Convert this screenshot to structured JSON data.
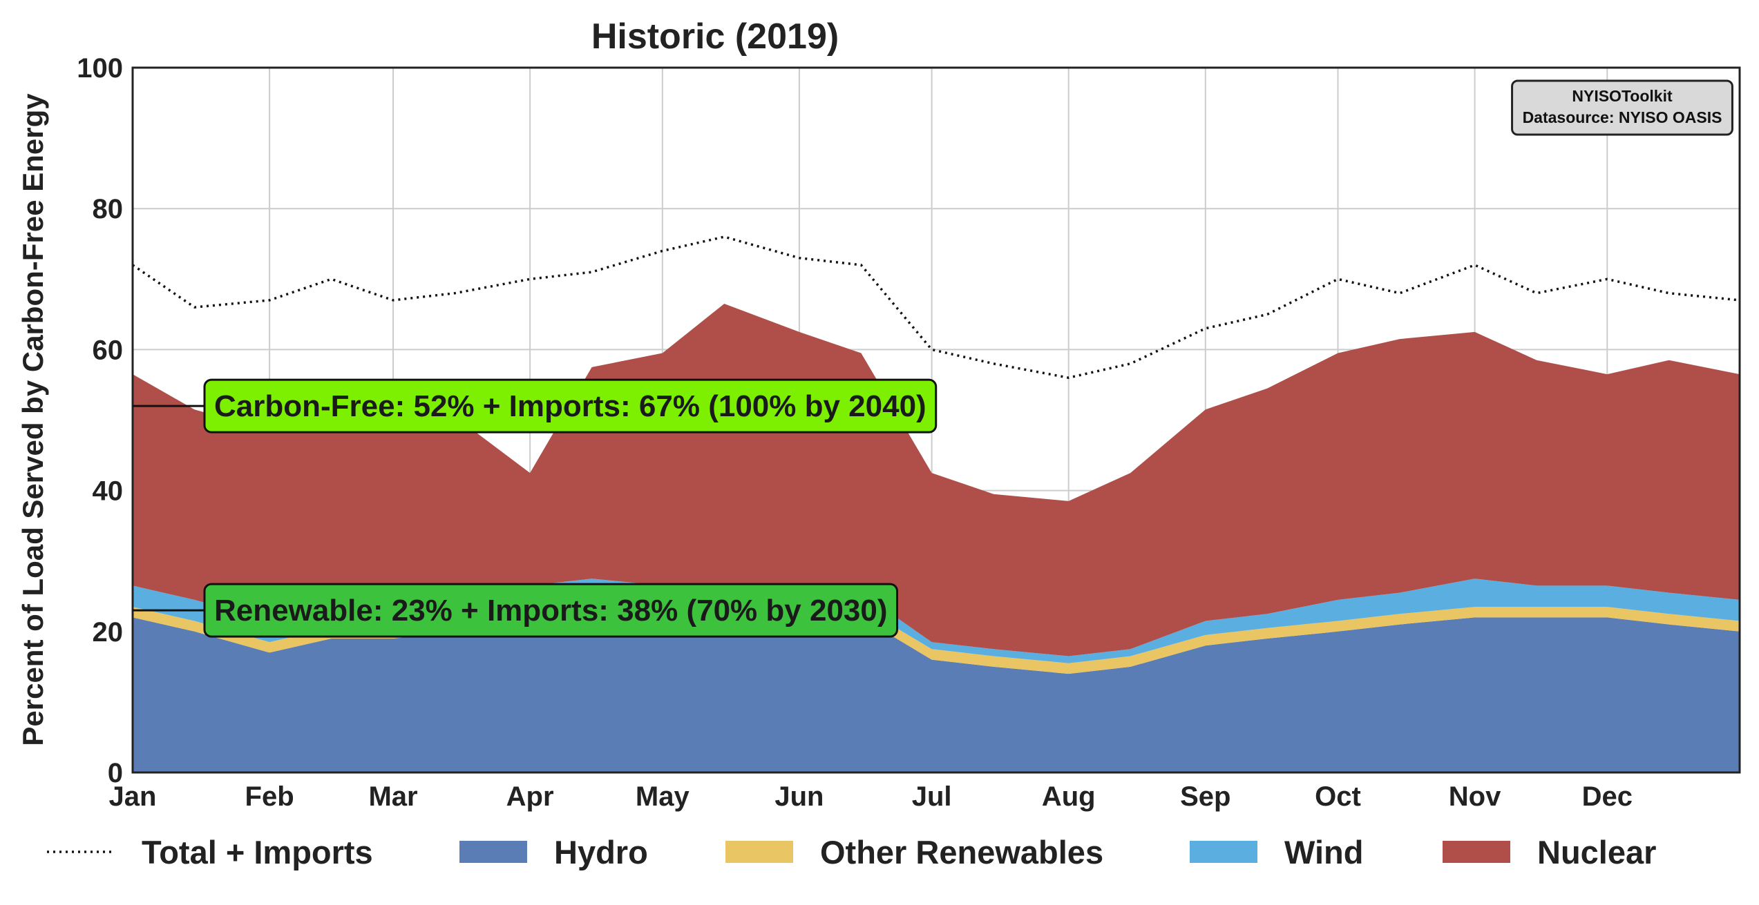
{
  "chart_data": {
    "type": "area",
    "title": "Historic (2019)",
    "xlabel": "",
    "ylabel": "Percent of Load Served by Carbon-Free Energy",
    "ylim": [
      0,
      100
    ],
    "yticks": [
      0,
      20,
      40,
      60,
      80,
      100
    ],
    "xlim": [
      "2019-01-01",
      "2019-12-31"
    ],
    "xticks": [
      {
        "date": "2019-01-01",
        "label": "Jan"
      },
      {
        "date": "2019-02-01",
        "label": "Feb"
      },
      {
        "date": "2019-03-01",
        "label": "Mar"
      },
      {
        "date": "2019-04-01",
        "label": "Apr"
      },
      {
        "date": "2019-05-01",
        "label": "May"
      },
      {
        "date": "2019-06-01",
        "label": "Jun"
      },
      {
        "date": "2019-07-01",
        "label": "Jul"
      },
      {
        "date": "2019-08-01",
        "label": "Aug"
      },
      {
        "date": "2019-09-01",
        "label": "Sep"
      },
      {
        "date": "2019-10-01",
        "label": "Oct"
      },
      {
        "date": "2019-11-01",
        "label": "Nov"
      },
      {
        "date": "2019-12-01",
        "label": "Dec"
      }
    ],
    "grid": true,
    "legend_position": "bottom",
    "x": [
      "2019-01-01",
      "2019-01-15",
      "2019-02-01",
      "2019-02-15",
      "2019-03-01",
      "2019-03-15",
      "2019-04-01",
      "2019-04-15",
      "2019-05-01",
      "2019-05-15",
      "2019-06-01",
      "2019-06-15",
      "2019-07-01",
      "2019-07-15",
      "2019-08-01",
      "2019-08-15",
      "2019-09-01",
      "2019-09-15",
      "2019-10-01",
      "2019-10-15",
      "2019-11-01",
      "2019-11-15",
      "2019-12-01",
      "2019-12-15",
      "2019-12-31"
    ],
    "series": [
      {
        "name": "Hydro",
        "color": "#5a7db5",
        "stacked": true,
        "values": [
          22,
          20,
          17,
          19,
          19,
          20,
          21,
          22,
          22,
          23,
          22,
          22,
          16,
          15,
          14,
          15,
          18,
          19,
          20,
          21,
          22,
          22,
          22,
          21,
          20
        ]
      },
      {
        "name": "Other Renewables",
        "color": "#eac563",
        "stacked": true,
        "values": [
          1.5,
          1.5,
          1.5,
          1.5,
          1.5,
          1.5,
          1.5,
          1.5,
          1.5,
          1.5,
          1.5,
          1.5,
          1.5,
          1.5,
          1.5,
          1.5,
          1.5,
          1.5,
          1.5,
          1.5,
          1.5,
          1.5,
          1.5,
          1.5,
          1.5
        ]
      },
      {
        "name": "Wind",
        "color": "#5aafe0",
        "stacked": true,
        "values": [
          3,
          3,
          3,
          4,
          3,
          3,
          4,
          4,
          3,
          2,
          2,
          2,
          1,
          1,
          1,
          1,
          2,
          2,
          3,
          3,
          4,
          3,
          3,
          3,
          3
        ]
      },
      {
        "name": "Nuclear",
        "color": "#b04f4a",
        "stacked": true,
        "values": [
          30,
          27,
          27,
          30,
          29,
          26,
          16,
          30,
          33,
          40,
          37,
          34,
          24,
          22,
          22,
          25,
          30,
          32,
          35,
          36,
          35,
          32,
          30,
          33,
          32
        ]
      },
      {
        "name": "Total + Imports",
        "color": "#111111",
        "style": "dotted",
        "values": [
          72,
          66,
          67,
          70,
          67,
          68,
          70,
          71,
          74,
          76,
          73,
          72,
          60,
          58,
          56,
          58,
          63,
          65,
          70,
          68,
          72,
          68,
          70,
          68,
          67
        ]
      }
    ],
    "annotations": [
      {
        "text": "Carbon-Free: 52% + Imports: 67% (100% by 2040)",
        "y": 52,
        "color": "#7cf000"
      },
      {
        "text": "Renewable: 23% + Imports: 38% (70% by 2030)",
        "y": 23,
        "color": "#3dc23d"
      }
    ],
    "source_box": {
      "line1": "NYISOToolkit",
      "line2": "Datasource: NYISO OASIS"
    }
  }
}
